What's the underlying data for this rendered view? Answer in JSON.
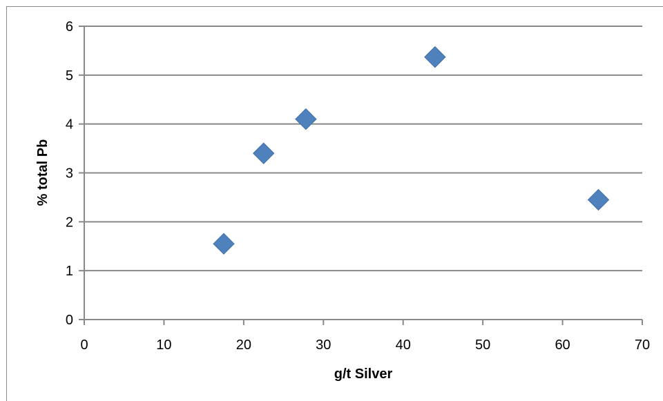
{
  "chart_data": {
    "type": "scatter",
    "title": "",
    "xlabel": "g/t Silver",
    "ylabel": "% total Pb",
    "xlim": [
      0,
      70
    ],
    "ylim": [
      0,
      6
    ],
    "x_ticks": [
      0,
      10,
      20,
      30,
      40,
      50,
      60,
      70
    ],
    "y_ticks": [
      0,
      1,
      2,
      3,
      4,
      5,
      6
    ],
    "grid": "horizontal",
    "legend": "none",
    "marker": "diamond",
    "series": [
      {
        "color": "#4f81bd",
        "points": [
          {
            "x": 17.5,
            "y": 1.55
          },
          {
            "x": 22.5,
            "y": 3.4
          },
          {
            "x": 27.8,
            "y": 4.1
          },
          {
            "x": 44.0,
            "y": 5.37
          },
          {
            "x": 64.5,
            "y": 2.45
          }
        ]
      }
    ],
    "colors": {
      "grid": "#888888",
      "axis": "#888888",
      "marker": "#4f81bd"
    }
  }
}
